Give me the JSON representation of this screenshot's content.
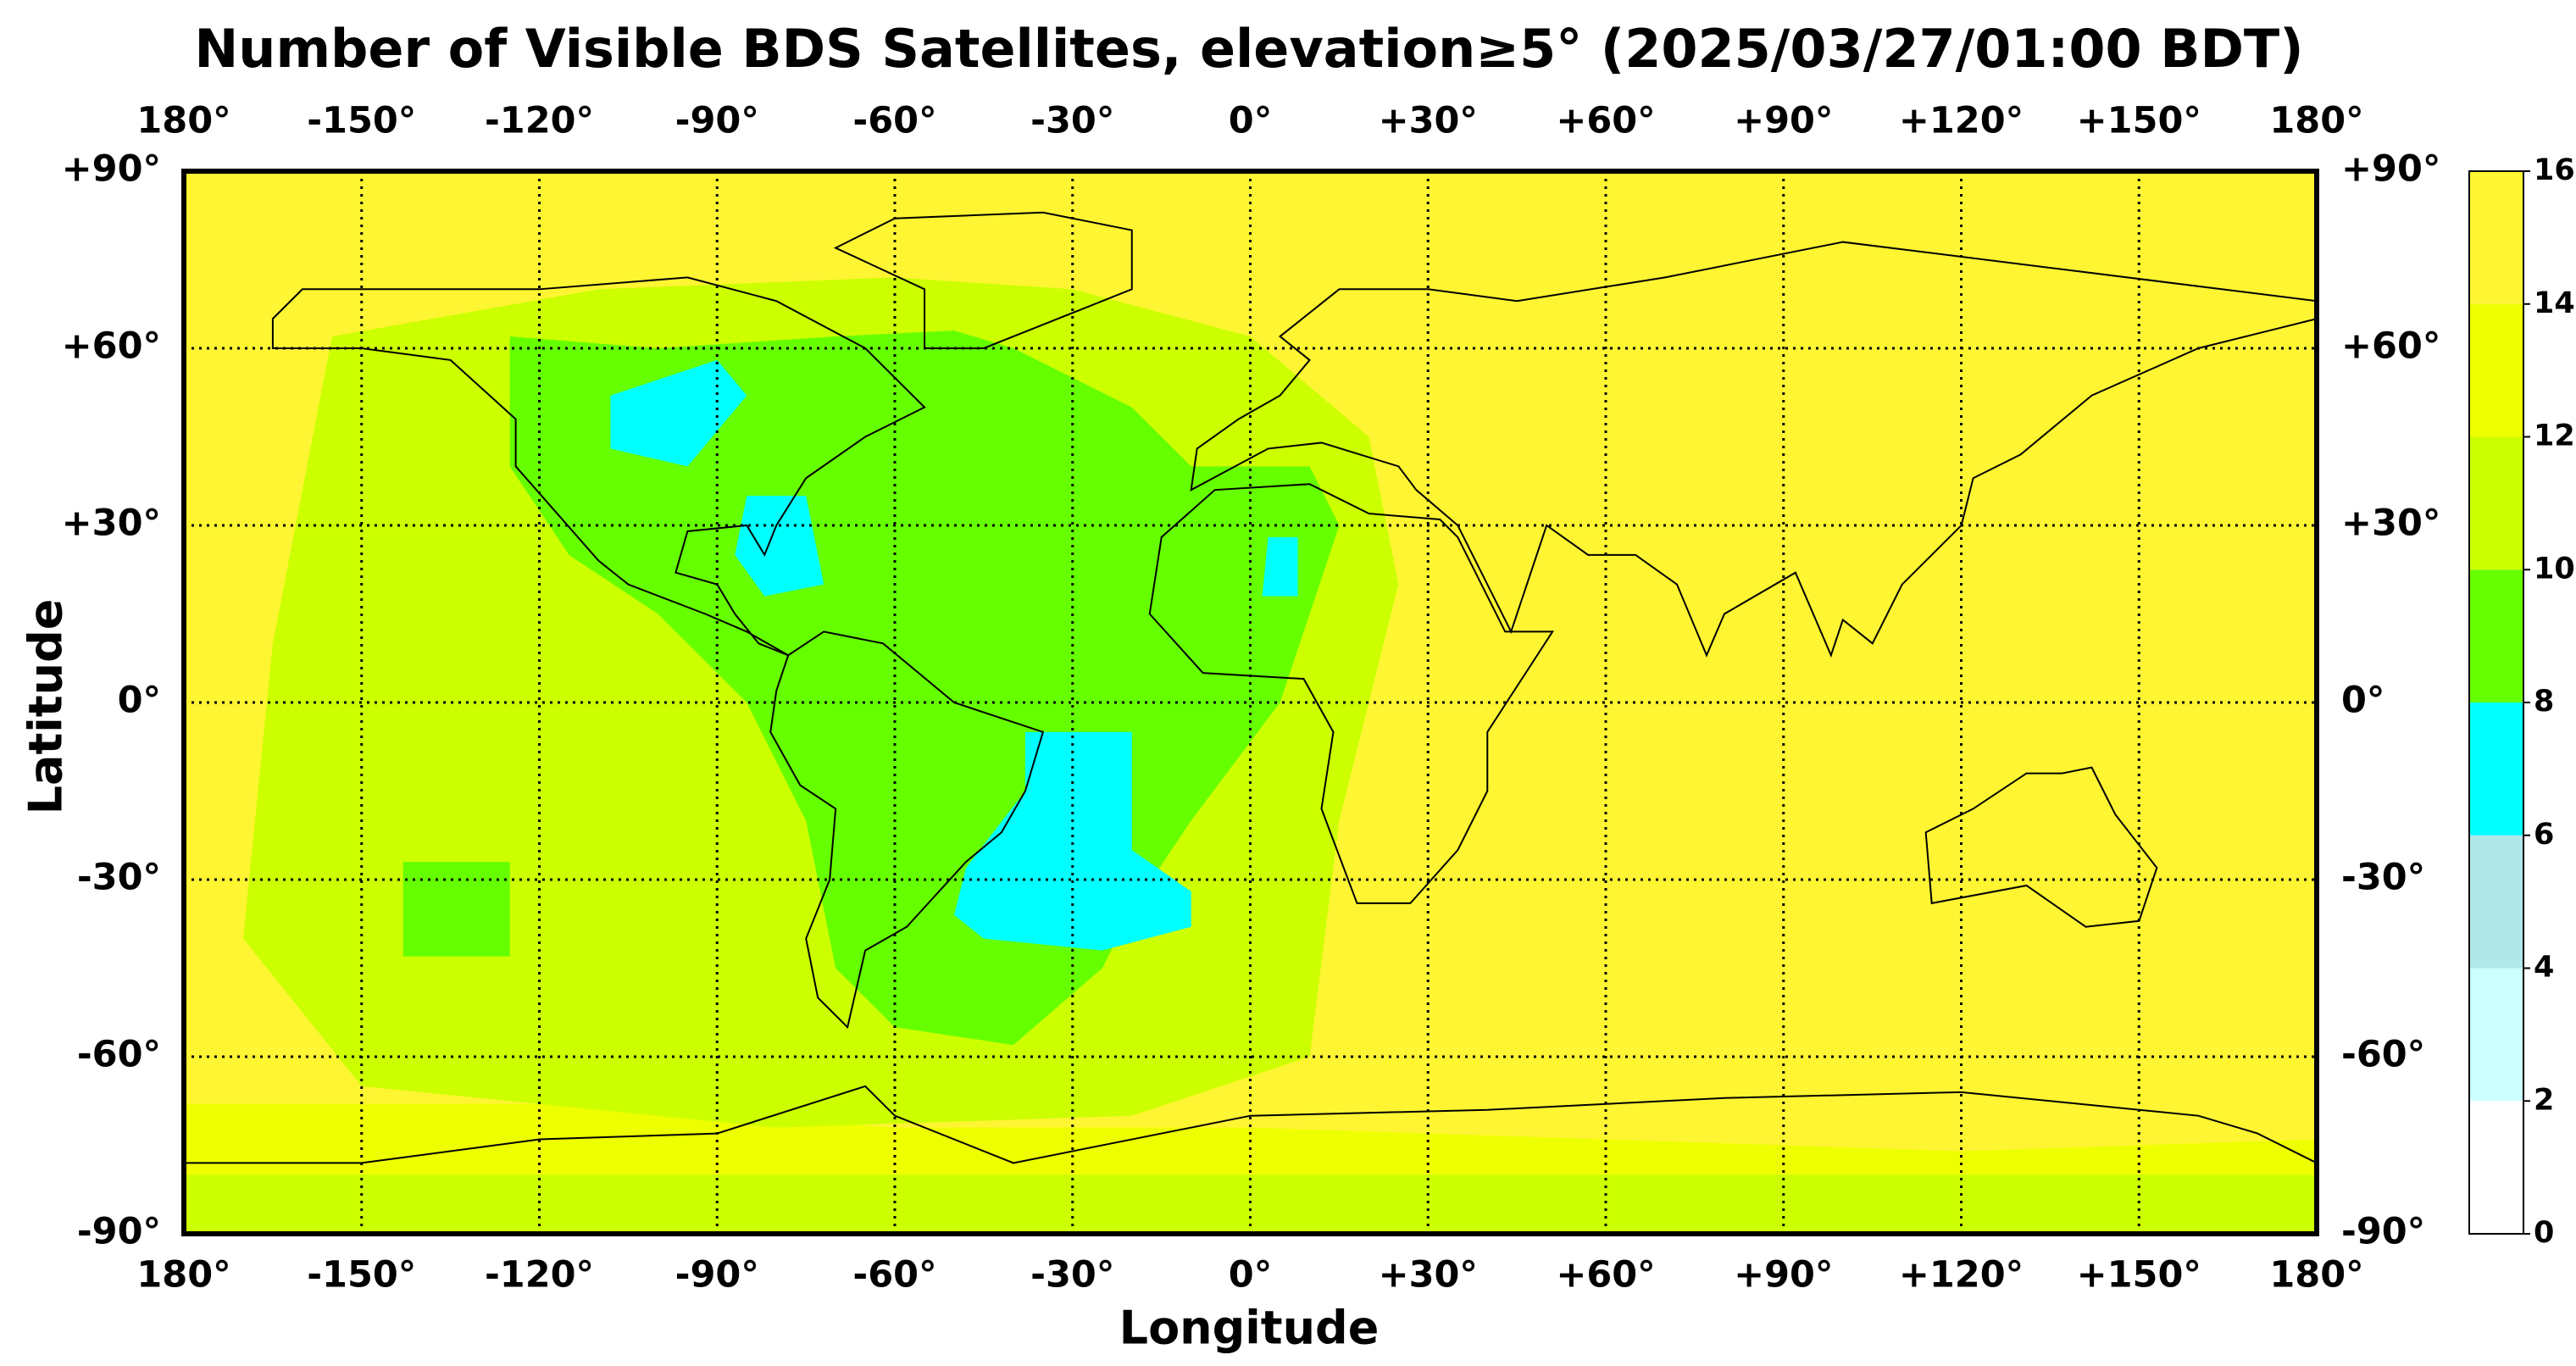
{
  "map": {
    "title": "Number of Visible BDS Satellites, elevation≥5° (2025/03/27/01:00 BDT)",
    "xlabel": "Longitude",
    "ylabel": "Latitude",
    "xlim": [
      -180,
      180
    ],
    "ylim": [
      -90,
      90
    ],
    "xticks": [
      {
        "value": -180,
        "label": "180°"
      },
      {
        "value": -150,
        "label": "-150°"
      },
      {
        "value": -120,
        "label": "-120°"
      },
      {
        "value": -90,
        "label": "-90°"
      },
      {
        "value": -60,
        "label": "-60°"
      },
      {
        "value": -30,
        "label": "-30°"
      },
      {
        "value": 0,
        "label": "0°"
      },
      {
        "value": 30,
        "label": "+30°"
      },
      {
        "value": 60,
        "label": "+60°"
      },
      {
        "value": 90,
        "label": "+90°"
      },
      {
        "value": 120,
        "label": "+120°"
      },
      {
        "value": 150,
        "label": "+150°"
      },
      {
        "value": 180,
        "label": "180°"
      }
    ],
    "yticks": [
      {
        "value": 90,
        "label": "+90°"
      },
      {
        "value": 60,
        "label": "+60°"
      },
      {
        "value": 30,
        "label": "+30°"
      },
      {
        "value": 0,
        "label": "0°"
      },
      {
        "value": -30,
        "label": "-30°"
      },
      {
        "value": -60,
        "label": "-60°"
      },
      {
        "value": -90,
        "label": "-90°"
      }
    ],
    "grid": true,
    "colorbar": {
      "ticks": [
        0,
        2,
        4,
        6,
        8,
        10,
        12,
        14,
        16
      ],
      "colors": [
        "#ffffff",
        "#ccffff",
        "#b0e8e8",
        "#00ffff",
        "#66ff00",
        "#ccff00",
        "#eeff00",
        "#fff533"
      ]
    }
  }
}
